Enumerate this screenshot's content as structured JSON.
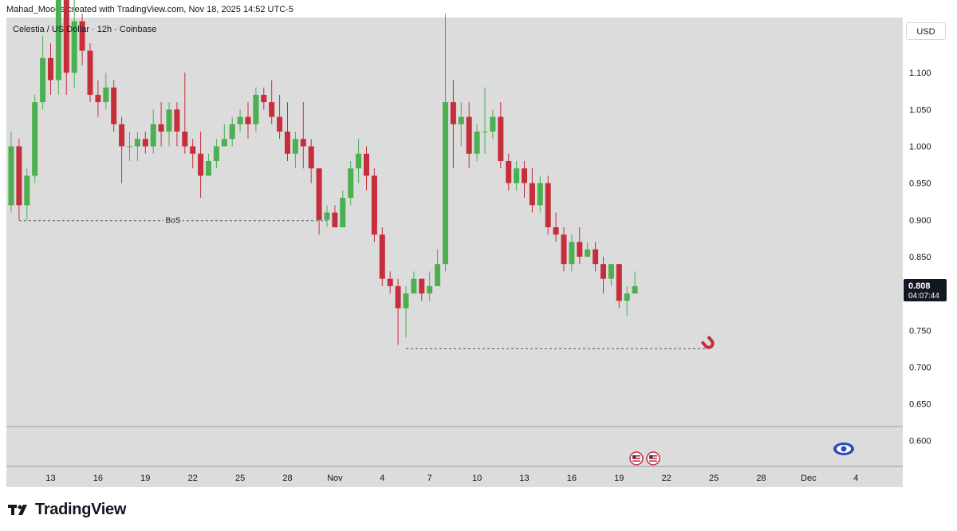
{
  "header": {
    "credit": "Mahad_Mooge created with TradingView.com, Nov 18, 2025 14:52 UTC-5",
    "legend": "Celestia / US Dollar · 12h · Coinbase",
    "currency_button": "USD"
  },
  "price_tag": {
    "price": "0.808",
    "countdown": "04:07:44",
    "value": 0.808
  },
  "annotations": {
    "bos_label": "BoS"
  },
  "brand": {
    "name": "TradingView"
  },
  "colors": {
    "up": "#4caf50",
    "down": "#c62e3c",
    "background": "#dcdcdc"
  },
  "chart_data": {
    "type": "candlestick",
    "interval": "12h",
    "ylim": [
      0.565,
      1.175
    ],
    "y_ticks": [
      "0.600",
      "0.650",
      "0.700",
      "0.750",
      "0.800",
      "0.850",
      "0.900",
      "0.950",
      "1.000",
      "1.050",
      "1.100"
    ],
    "x_ticks": [
      "13",
      "16",
      "19",
      "22",
      "25",
      "28",
      "Nov",
      "4",
      "7",
      "10",
      "13",
      "16",
      "19",
      "22",
      "25",
      "28",
      "Dec",
      "4"
    ],
    "candles": [
      [
        0.92,
        1.0,
        1.02,
        0.91
      ],
      [
        1.0,
        0.92,
        1.01,
        0.9
      ],
      [
        0.92,
        0.96,
        0.97,
        0.9
      ],
      [
        0.96,
        1.06,
        1.07,
        0.95
      ],
      [
        1.06,
        1.12,
        1.15,
        1.05
      ],
      [
        1.12,
        1.09,
        1.14,
        1.07
      ],
      [
        1.09,
        1.2,
        1.22,
        1.07
      ],
      [
        1.2,
        1.1,
        1.22,
        1.07
      ],
      [
        1.1,
        1.17,
        1.2,
        1.08
      ],
      [
        1.17,
        1.13,
        1.18,
        1.11
      ],
      [
        1.13,
        1.07,
        1.14,
        1.06
      ],
      [
        1.07,
        1.06,
        1.09,
        1.04
      ],
      [
        1.06,
        1.08,
        1.1,
        1.05
      ],
      [
        1.08,
        1.03,
        1.09,
        1.02
      ],
      [
        1.03,
        1.0,
        1.04,
        0.95
      ],
      [
        1.0,
        1.0,
        1.02,
        0.98
      ],
      [
        1.0,
        1.01,
        1.02,
        0.98
      ],
      [
        1.01,
        1.0,
        1.02,
        0.99
      ],
      [
        1.0,
        1.03,
        1.05,
        0.99
      ],
      [
        1.03,
        1.02,
        1.06,
        1.0
      ],
      [
        1.02,
        1.05,
        1.06,
        1.0
      ],
      [
        1.05,
        1.02,
        1.06,
        1.0
      ],
      [
        1.02,
        1.0,
        1.1,
        0.99
      ],
      [
        1.0,
        0.99,
        1.01,
        0.97
      ],
      [
        0.99,
        0.96,
        1.02,
        0.93
      ],
      [
        0.96,
        0.98,
        0.99,
        0.96
      ],
      [
        0.98,
        1.0,
        1.01,
        0.97
      ],
      [
        1.0,
        1.01,
        1.03,
        1.0
      ],
      [
        1.01,
        1.03,
        1.04,
        1.0
      ],
      [
        1.03,
        1.04,
        1.05,
        1.02
      ],
      [
        1.04,
        1.03,
        1.06,
        1.01
      ],
      [
        1.03,
        1.07,
        1.08,
        1.02
      ],
      [
        1.07,
        1.06,
        1.08,
        1.05
      ],
      [
        1.06,
        1.04,
        1.09,
        1.03
      ],
      [
        1.04,
        1.02,
        1.07,
        1.01
      ],
      [
        1.02,
        0.99,
        1.06,
        0.98
      ],
      [
        0.99,
        1.01,
        1.02,
        0.97
      ],
      [
        1.01,
        1.0,
        1.06,
        0.97
      ],
      [
        1.0,
        0.97,
        1.01,
        0.95
      ],
      [
        0.97,
        0.9,
        0.97,
        0.88
      ],
      [
        0.9,
        0.91,
        0.92,
        0.89
      ],
      [
        0.91,
        0.89,
        0.92,
        0.89
      ],
      [
        0.89,
        0.93,
        0.94,
        0.89
      ],
      [
        0.93,
        0.97,
        0.98,
        0.92
      ],
      [
        0.97,
        0.99,
        1.01,
        0.95
      ],
      [
        0.99,
        0.96,
        1.0,
        0.94
      ],
      [
        0.96,
        0.88,
        0.97,
        0.87
      ],
      [
        0.88,
        0.82,
        0.89,
        0.81
      ],
      [
        0.82,
        0.81,
        0.83,
        0.8
      ],
      [
        0.81,
        0.78,
        0.82,
        0.73
      ],
      [
        0.78,
        0.8,
        0.81,
        0.74
      ],
      [
        0.8,
        0.82,
        0.83,
        0.8
      ],
      [
        0.82,
        0.8,
        0.82,
        0.79
      ],
      [
        0.8,
        0.81,
        0.83,
        0.79
      ],
      [
        0.81,
        0.84,
        0.86,
        0.81
      ],
      [
        0.84,
        1.06,
        1.18,
        0.83
      ],
      [
        1.06,
        1.03,
        1.09,
        0.97
      ],
      [
        1.03,
        1.04,
        1.06,
        1.0
      ],
      [
        1.04,
        0.99,
        1.06,
        0.97
      ],
      [
        0.99,
        1.02,
        1.03,
        0.98
      ],
      [
        1.02,
        1.02,
        1.08,
        0.99
      ],
      [
        1.02,
        1.04,
        1.05,
        1.01
      ],
      [
        1.04,
        0.98,
        1.06,
        0.97
      ],
      [
        0.98,
        0.95,
        0.99,
        0.94
      ],
      [
        0.95,
        0.97,
        0.98,
        0.94
      ],
      [
        0.97,
        0.95,
        0.98,
        0.93
      ],
      [
        0.95,
        0.92,
        0.97,
        0.91
      ],
      [
        0.92,
        0.95,
        0.96,
        0.91
      ],
      [
        0.95,
        0.89,
        0.96,
        0.88
      ],
      [
        0.89,
        0.88,
        0.91,
        0.87
      ],
      [
        0.88,
        0.84,
        0.89,
        0.83
      ],
      [
        0.84,
        0.87,
        0.88,
        0.83
      ],
      [
        0.87,
        0.85,
        0.89,
        0.84
      ],
      [
        0.85,
        0.86,
        0.87,
        0.85
      ],
      [
        0.86,
        0.84,
        0.87,
        0.83
      ],
      [
        0.84,
        0.82,
        0.85,
        0.8
      ],
      [
        0.82,
        0.84,
        0.84,
        0.81
      ],
      [
        0.84,
        0.79,
        0.84,
        0.78
      ],
      [
        0.79,
        0.8,
        0.81,
        0.77
      ],
      [
        0.8,
        0.81,
        0.83,
        0.8
      ]
    ],
    "levels": [
      {
        "name": "bos",
        "price": 0.899,
        "from_index": 1,
        "to_index": 40,
        "label": "BoS"
      },
      {
        "name": "target",
        "price": 0.725,
        "from_index": 50,
        "to_index": 88
      }
    ]
  }
}
